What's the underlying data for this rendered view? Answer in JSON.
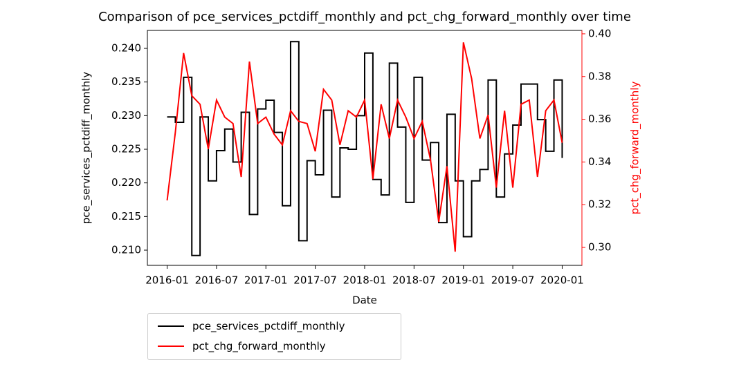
{
  "chart_data": {
    "type": "line",
    "title": "Comparison of pce_services_pctdiff_monthly and pct_chg_forward_monthly over time",
    "xlabel": "Date",
    "ylabel": "pce_services_pctdiff_monthly",
    "y2label": "pct_chg_forward_monthly",
    "y2label_color": "#ff0000",
    "x": [
      "2016-01",
      "2016-02",
      "2016-03",
      "2016-04",
      "2016-05",
      "2016-06",
      "2016-07",
      "2016-08",
      "2016-09",
      "2016-10",
      "2016-11",
      "2016-12",
      "2017-01",
      "2017-02",
      "2017-03",
      "2017-04",
      "2017-05",
      "2017-06",
      "2017-07",
      "2017-08",
      "2017-09",
      "2017-10",
      "2017-11",
      "2017-12",
      "2018-01",
      "2018-02",
      "2018-03",
      "2018-04",
      "2018-05",
      "2018-06",
      "2018-07",
      "2018-08",
      "2018-09",
      "2018-10",
      "2018-11",
      "2018-12",
      "2019-01",
      "2019-02",
      "2019-03",
      "2019-04",
      "2019-05",
      "2019-06",
      "2019-07",
      "2019-08",
      "2019-09",
      "2019-10",
      "2019-11",
      "2019-12",
      "2020-01"
    ],
    "xticks": [
      "2016-01",
      "2016-07",
      "2017-01",
      "2017-07",
      "2018-01",
      "2018-07",
      "2019-01",
      "2019-07",
      "2020-01"
    ],
    "ylim": [
      0.20774,
      0.24267
    ],
    "yticks": [
      {
        "value": 0.21,
        "label": "0.210"
      },
      0.215,
      {
        "value": 0.22,
        "label": "0.220"
      },
      0.225,
      {
        "value": 0.23,
        "label": "0.230"
      },
      0.235,
      {
        "value": 0.24,
        "label": "0.240"
      }
    ],
    "y2lim": [
      0.2916,
      0.4016
    ],
    "y2ticks": [
      {
        "value": 0.3,
        "label": "0.30"
      },
      0.32,
      0.34,
      0.36,
      0.38,
      {
        "value": 0.4,
        "label": "0.40"
      }
    ],
    "series": [
      {
        "name": "pce_services_pctdiff_monthly",
        "color": "#000000",
        "step": true,
        "values": [
          0.2298,
          0.229,
          0.2357,
          0.2092,
          0.2298,
          0.2203,
          0.2248,
          0.228,
          0.2231,
          0.2305,
          0.2153,
          0.231,
          0.2323,
          0.2275,
          0.2166,
          0.241,
          0.2114,
          0.2233,
          0.2212,
          0.2308,
          0.2179,
          0.2252,
          0.225,
          0.23,
          0.2393,
          0.2205,
          0.2182,
          0.2378,
          0.2283,
          0.2171,
          0.2357,
          0.2234,
          0.226,
          0.2141,
          0.2302,
          0.2203,
          0.212,
          0.2203,
          0.222,
          0.2353,
          0.2179,
          0.2243,
          0.2286,
          0.2347,
          0.2347,
          0.2294,
          0.2247,
          0.2353,
          0.2237
        ]
      },
      {
        "name": "pct_chg_forward_monthly",
        "color": "#ff0000",
        "axis": "y2",
        "values": [
          0.322,
          0.354,
          0.391,
          0.371,
          0.367,
          0.346,
          0.369,
          0.361,
          0.358,
          0.333,
          0.387,
          0.358,
          0.361,
          0.353,
          0.348,
          0.364,
          0.359,
          0.358,
          0.345,
          0.374,
          0.369,
          0.348,
          0.364,
          0.361,
          0.369,
          0.332,
          0.367,
          0.351,
          0.369,
          0.361,
          0.351,
          0.359,
          0.341,
          0.312,
          0.338,
          0.298,
          0.396,
          0.379,
          0.351,
          0.362,
          0.328,
          0.364,
          0.328,
          0.367,
          0.369,
          0.333,
          0.364,
          0.369,
          0.349
        ]
      }
    ]
  }
}
